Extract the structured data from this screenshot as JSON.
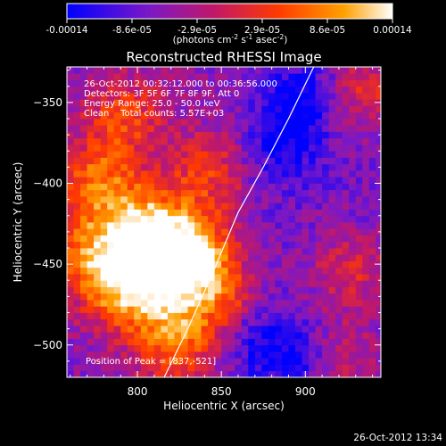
{
  "chart_data": {
    "type": "heatmap",
    "title": "Reconstructed RHESSI Image",
    "xlabel": "Heliocentric X (arcsec)",
    "ylabel": "Heliocentric Y (arcsec)",
    "xlim": [
      758,
      945
    ],
    "ylim": [
      -520,
      -328
    ],
    "x_ticks": [
      800,
      850,
      900
    ],
    "y_ticks": [
      -350,
      -400,
      -450,
      -500
    ],
    "colorbar": {
      "range": [
        -0.00014,
        0.00014
      ],
      "ticks": [
        "-0.00014",
        "-8.6e-05",
        "-2.9e-05",
        "2.9e-05",
        "8.6e-05",
        "0.00014"
      ],
      "unit_label": "(photons cm",
      "unit_exp1": "-2",
      "unit_mid": " s",
      "unit_exp2": "-1",
      "unit_mid2": " asec",
      "unit_exp3": "-2",
      "unit_end": ")",
      "colors": [
        "#0000ff",
        "#7a18c8",
        "#c0186a",
        "#ff3a00",
        "#ffa000",
        "#ffffff"
      ]
    },
    "info_lines": [
      "26-Oct-2012 00:32:12.000 to 00:36:56.000",
      "Detectors: 3F 5F 6F 7F 8F 9F, Att 0",
      "Energy Range: 25.0 - 50.0 keV",
      "Clean    Total counts: 5.57E+03"
    ],
    "peak_label": "Position of Peak = [837,-521]",
    "limb_curve": {
      "x": [
        815,
        830,
        845,
        860,
        875,
        890,
        905
      ],
      "y": [
        -522,
        -490,
        -455,
        -418,
        -390,
        -360,
        -328
      ]
    },
    "bright_regions": [
      {
        "x": 800,
        "y": -430,
        "intensity": 1.0
      },
      {
        "x": 815,
        "y": -455,
        "intensity": 0.95
      },
      {
        "x": 790,
        "y": -470,
        "intensity": 0.85
      },
      {
        "x": 830,
        "y": -440,
        "intensity": 0.8
      },
      {
        "x": 775,
        "y": -400,
        "intensity": 0.75
      },
      {
        "x": 820,
        "y": -500,
        "intensity": 0.8
      },
      {
        "x": 845,
        "y": -470,
        "intensity": 0.7
      },
      {
        "x": 790,
        "y": -360,
        "intensity": 0.6
      },
      {
        "x": 770,
        "y": -445,
        "intensity": 0.75
      },
      {
        "x": 838,
        "y": -395,
        "intensity": 0.55
      },
      {
        "x": 935,
        "y": -345,
        "intensity": 0.55
      },
      {
        "x": 915,
        "y": -510,
        "intensity": 0.6
      },
      {
        "x": 925,
        "y": -455,
        "intensity": 0.5
      }
    ],
    "dim_regions": [
      {
        "x": 895,
        "y": -350,
        "intensity": -0.8
      },
      {
        "x": 900,
        "y": -510,
        "intensity": -0.9
      },
      {
        "x": 885,
        "y": -380,
        "intensity": -0.6
      },
      {
        "x": 870,
        "y": -500,
        "intensity": -0.6
      }
    ],
    "grid": false
  },
  "timestamp": "26-Oct-2012 13:34"
}
